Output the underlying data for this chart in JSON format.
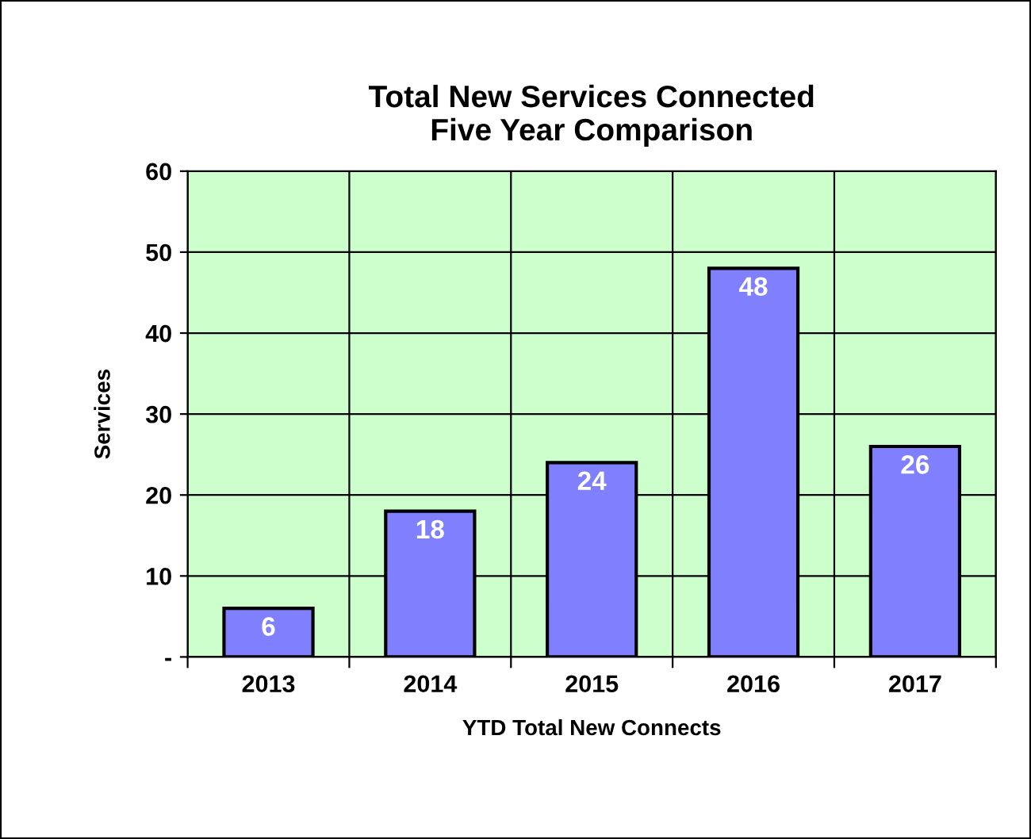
{
  "chart_data": {
    "type": "bar",
    "title": "Total New Services Connected\nFive Year Comparison",
    "xlabel": "YTD Total New Connects",
    "ylabel": "Services",
    "categories": [
      "2013",
      "2014",
      "2015",
      "2016",
      "2017"
    ],
    "values": [
      6,
      18,
      24,
      48,
      26
    ],
    "color": "#8080ff",
    "ylim": [
      0,
      60
    ],
    "yticks": [
      {
        "value": 0,
        "label": "-"
      },
      10,
      20,
      30,
      40,
      50,
      60
    ],
    "grid": true,
    "data_labels": true
  }
}
